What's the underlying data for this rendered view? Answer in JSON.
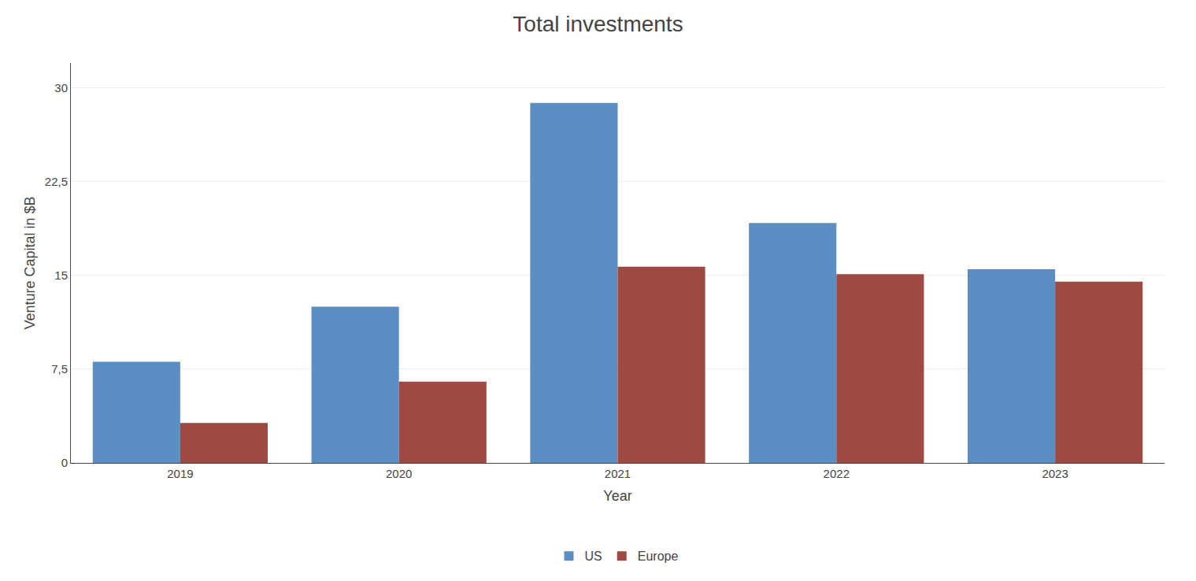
{
  "chart_data": {
    "type": "bar",
    "title": "Total investments",
    "xlabel": "Year",
    "ylabel": "Venture Capital in $B",
    "categories": [
      "2019",
      "2020",
      "2021",
      "2022",
      "2023"
    ],
    "series": [
      {
        "name": "US",
        "color": "#5B8FC4",
        "values": [
          8.1,
          12.5,
          28.8,
          19.2,
          15.5
        ]
      },
      {
        "name": "Europe",
        "color": "#9E4A42",
        "values": [
          3.2,
          6.5,
          15.7,
          15.1,
          14.5
        ]
      }
    ],
    "ylim": [
      0,
      32
    ],
    "yticks": [
      0,
      {
        "value": 7.5,
        "label": "7,5"
      },
      15,
      {
        "value": 22.5,
        "label": "22,5"
      },
      30
    ],
    "grid": true,
    "legend": "bottom"
  }
}
